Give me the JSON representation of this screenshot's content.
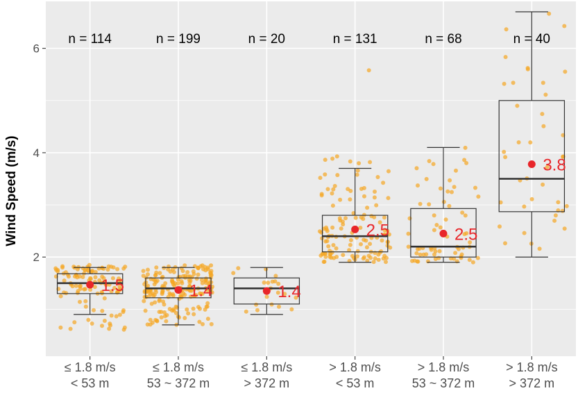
{
  "chart_data": {
    "type": "boxplot",
    "ylabel": "Wind Speed (m/s)",
    "xlabel": "",
    "ylim": [
      0.1,
      6.9
    ],
    "yticks": [
      2,
      4,
      6
    ],
    "grid": true,
    "colors": {
      "panel": "#ebebeb",
      "grid": "#ffffff",
      "box": "#333333",
      "points": "#f5a623",
      "mean": "#e8262a"
    },
    "categories": [
      {
        "line1": "≤ 1.8 m/s",
        "line2": "< 53 m",
        "n_text": "n =  114",
        "n": 114,
        "min": 0.9,
        "q1": 1.3,
        "median": 1.5,
        "q3": 1.68,
        "max": 1.8,
        "mean": 1.47,
        "mean_label": "1.5",
        "point_min": 0.53,
        "point_max": 1.85
      },
      {
        "line1": "≤ 1.8 m/s",
        "line2": "53 ~ 372 m",
        "n_text": "n =  199",
        "n": 199,
        "min": 0.7,
        "q1": 1.22,
        "median": 1.4,
        "q3": 1.6,
        "max": 1.8,
        "mean": 1.37,
        "mean_label": "1.4",
        "point_min": 0.7,
        "point_max": 1.85
      },
      {
        "line1": "≤ 1.8 m/s",
        "line2": "> 372 m",
        "n_text": "n =  20",
        "n": 20,
        "min": 0.9,
        "q1": 1.1,
        "median": 1.4,
        "q3": 1.6,
        "max": 1.8,
        "mean": 1.35,
        "mean_label": "1.4",
        "point_min": 0.95,
        "point_max": 1.8
      },
      {
        "line1": "> 1.8 m/s",
        "line2": "< 53 m",
        "n_text": "n =  131",
        "n": 131,
        "min": 1.9,
        "q1": 2.1,
        "median": 2.4,
        "q3": 2.8,
        "max": 3.7,
        "mean": 2.53,
        "mean_label": "2.5",
        "point_min": 1.9,
        "point_max": 3.95,
        "outliers": [
          5.58
        ]
      },
      {
        "line1": "> 1.8 m/s",
        "line2": "53 ~ 372 m",
        "n_text": "n =  68",
        "n": 68,
        "min": 1.9,
        "q1": 2.0,
        "median": 2.2,
        "q3": 2.93,
        "max": 4.1,
        "mean": 2.45,
        "mean_label": "2.5",
        "point_min": 1.9,
        "point_max": 4.1
      },
      {
        "line1": "> 1.8 m/s",
        "line2": "> 372 m",
        "n_text": "n =  40",
        "n": 40,
        "min": 2.0,
        "q1": 2.87,
        "median": 3.5,
        "q3": 5.0,
        "max": 6.7,
        "mean": 3.78,
        "mean_label": "3.8",
        "point_min": 2.05,
        "point_max": 6.72
      }
    ]
  }
}
